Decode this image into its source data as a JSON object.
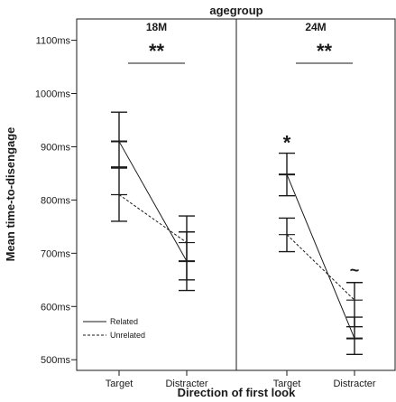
{
  "chart_data": {
    "type": "line",
    "facet_title": "agegroup",
    "xlabel": "Direction of first look",
    "ylabel": "Mean time-to-disengage",
    "ylim": [
      480,
      1140
    ],
    "yticks": [
      500,
      600,
      700,
      800,
      900,
      1000,
      1100
    ],
    "ytick_labels": [
      "500ms",
      "600ms",
      "700ms",
      "800ms",
      "900ms",
      "1000ms",
      "1100ms"
    ],
    "categories": [
      "Target",
      "Distracter"
    ],
    "legend": {
      "position": "bottom-left",
      "entries": [
        "Related",
        "Unrelated"
      ]
    },
    "panels": [
      {
        "title": "18M",
        "significance": "**",
        "star_annotations": [],
        "series": [
          {
            "name": "Related",
            "style": "solid",
            "values": [
              910,
              685
            ],
            "error_low": [
              860,
              650
            ],
            "error_high": [
              965,
              740
            ]
          },
          {
            "name": "Unrelated",
            "style": "dashed",
            "values": [
              810,
              720
            ],
            "error_low": [
              760,
              630
            ],
            "error_high": [
              862,
              770
            ]
          }
        ]
      },
      {
        "title": "24M",
        "significance": "**",
        "star_annotations": [
          {
            "text": "*",
            "category": 0
          },
          {
            "text": "~",
            "category": 1
          }
        ],
        "series": [
          {
            "name": "Related",
            "style": "solid",
            "values": [
              848,
              540
            ],
            "error_low": [
              808,
              510
            ],
            "error_high": [
              888,
              580
            ]
          },
          {
            "name": "Unrelated",
            "style": "dashed",
            "values": [
              735,
              612
            ],
            "error_low": [
              703,
              562
            ],
            "error_high": [
              766,
              645
            ]
          }
        ]
      }
    ]
  }
}
